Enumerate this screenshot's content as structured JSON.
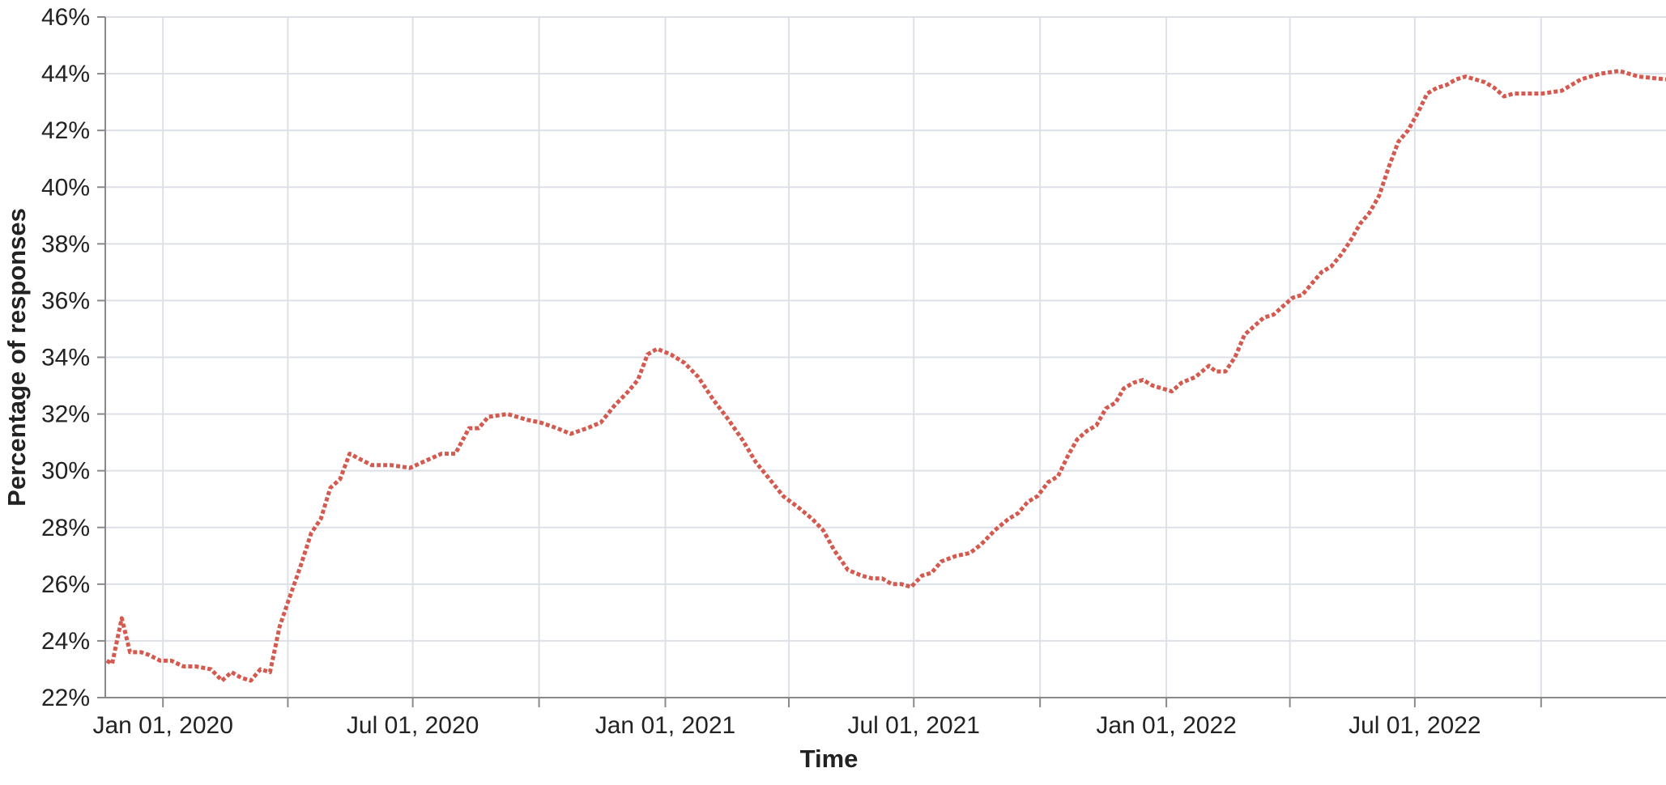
{
  "chart_data": {
    "type": "line",
    "xlabel": "Time",
    "ylabel": "Percentage of responses",
    "ylim": [
      22,
      46
    ],
    "xlim": [
      "2019-11-20",
      "2022-12-31"
    ],
    "y_tick_values": [
      22,
      24,
      26,
      28,
      30,
      32,
      34,
      36,
      38,
      40,
      42,
      44,
      46
    ],
    "y_tick_labels": [
      "22%",
      "24%",
      "26%",
      "28%",
      "30%",
      "32%",
      "34%",
      "36%",
      "38%",
      "40%",
      "42%",
      "44%",
      "46%"
    ],
    "x_gridlines": [
      "2020-01-01",
      "2020-04-01",
      "2020-07-01",
      "2020-10-01",
      "2021-01-01",
      "2021-04-01",
      "2021-07-01",
      "2021-10-01",
      "2022-01-01",
      "2022-04-01",
      "2022-07-01",
      "2022-10-01"
    ],
    "x_tick_labels": [
      {
        "date": "2020-01-01",
        "label": "Jan 01, 2020"
      },
      {
        "date": "2020-07-01",
        "label": "Jul 01, 2020"
      },
      {
        "date": "2021-01-01",
        "label": "Jan 01, 2021"
      },
      {
        "date": "2021-07-01",
        "label": "Jul 01, 2021"
      },
      {
        "date": "2022-01-01",
        "label": "Jan 01, 2022"
      },
      {
        "date": "2022-07-01",
        "label": "Jul 01, 2022"
      }
    ],
    "grid": true,
    "legend": "none",
    "series": [
      {
        "color": "#d45a50",
        "style": "dotted",
        "points": [
          [
            "2019-11-21",
            23.3
          ],
          [
            "2019-11-25",
            23.2
          ],
          [
            "2019-12-02",
            24.8
          ],
          [
            "2019-12-08",
            23.6
          ],
          [
            "2019-12-16",
            23.6
          ],
          [
            "2019-12-22",
            23.5
          ],
          [
            "2019-12-30",
            23.3
          ],
          [
            "2020-01-07",
            23.3
          ],
          [
            "2020-01-16",
            23.1
          ],
          [
            "2020-01-25",
            23.1
          ],
          [
            "2020-02-05",
            23.0
          ],
          [
            "2020-02-13",
            22.6
          ],
          [
            "2020-02-20",
            22.9
          ],
          [
            "2020-02-27",
            22.7
          ],
          [
            "2020-03-05",
            22.6
          ],
          [
            "2020-03-12",
            23.0
          ],
          [
            "2020-03-19",
            22.9
          ],
          [
            "2020-03-26",
            24.5
          ],
          [
            "2020-04-02",
            25.5
          ],
          [
            "2020-04-10",
            26.6
          ],
          [
            "2020-04-18",
            27.8
          ],
          [
            "2020-04-25",
            28.3
          ],
          [
            "2020-05-02",
            29.4
          ],
          [
            "2020-05-09",
            29.7
          ],
          [
            "2020-05-16",
            30.6
          ],
          [
            "2020-05-24",
            30.4
          ],
          [
            "2020-06-01",
            30.2
          ],
          [
            "2020-06-15",
            30.2
          ],
          [
            "2020-06-29",
            30.1
          ],
          [
            "2020-07-08",
            30.3
          ],
          [
            "2020-07-22",
            30.6
          ],
          [
            "2020-08-01",
            30.6
          ],
          [
            "2020-08-11",
            31.5
          ],
          [
            "2020-08-18",
            31.5
          ],
          [
            "2020-08-25",
            31.9
          ],
          [
            "2020-09-08",
            32.0
          ],
          [
            "2020-09-22",
            31.8
          ],
          [
            "2020-10-02",
            31.7
          ],
          [
            "2020-10-14",
            31.5
          ],
          [
            "2020-10-24",
            31.3
          ],
          [
            "2020-11-05",
            31.5
          ],
          [
            "2020-11-15",
            31.7
          ],
          [
            "2020-11-25",
            32.3
          ],
          [
            "2020-12-05",
            32.8
          ],
          [
            "2020-12-12",
            33.2
          ],
          [
            "2020-12-19",
            34.1
          ],
          [
            "2020-12-26",
            34.3
          ],
          [
            "2021-01-05",
            34.1
          ],
          [
            "2021-01-15",
            33.8
          ],
          [
            "2021-01-25",
            33.3
          ],
          [
            "2021-02-05",
            32.5
          ],
          [
            "2021-02-16",
            31.8
          ],
          [
            "2021-02-26",
            31.1
          ],
          [
            "2021-03-08",
            30.3
          ],
          [
            "2021-03-18",
            29.7
          ],
          [
            "2021-03-28",
            29.1
          ],
          [
            "2021-04-08",
            28.7
          ],
          [
            "2021-04-18",
            28.3
          ],
          [
            "2021-04-26",
            27.9
          ],
          [
            "2021-05-04",
            27.2
          ],
          [
            "2021-05-14",
            26.5
          ],
          [
            "2021-05-24",
            26.3
          ],
          [
            "2021-06-01",
            26.2
          ],
          [
            "2021-06-08",
            26.2
          ],
          [
            "2021-06-15",
            26.0
          ],
          [
            "2021-06-22",
            26.0
          ],
          [
            "2021-06-29",
            25.9
          ],
          [
            "2021-07-07",
            26.3
          ],
          [
            "2021-07-14",
            26.4
          ],
          [
            "2021-07-21",
            26.8
          ],
          [
            "2021-08-01",
            27.0
          ],
          [
            "2021-08-11",
            27.1
          ],
          [
            "2021-08-19",
            27.4
          ],
          [
            "2021-08-29",
            27.9
          ],
          [
            "2021-09-08",
            28.3
          ],
          [
            "2021-09-15",
            28.5
          ],
          [
            "2021-09-22",
            28.9
          ],
          [
            "2021-09-29",
            29.1
          ],
          [
            "2021-10-07",
            29.6
          ],
          [
            "2021-10-14",
            29.8
          ],
          [
            "2021-10-21",
            30.5
          ],
          [
            "2021-10-28",
            31.1
          ],
          [
            "2021-11-04",
            31.4
          ],
          [
            "2021-11-11",
            31.6
          ],
          [
            "2021-11-18",
            32.2
          ],
          [
            "2021-11-25",
            32.4
          ],
          [
            "2021-12-01",
            32.9
          ],
          [
            "2021-12-08",
            33.1
          ],
          [
            "2021-12-15",
            33.2
          ],
          [
            "2021-12-22",
            33.0
          ],
          [
            "2021-12-29",
            32.9
          ],
          [
            "2022-01-05",
            32.8
          ],
          [
            "2022-01-12",
            33.1
          ],
          [
            "2022-01-22",
            33.3
          ],
          [
            "2022-02-01",
            33.7
          ],
          [
            "2022-02-06",
            33.5
          ],
          [
            "2022-02-13",
            33.5
          ],
          [
            "2022-02-20",
            34.0
          ],
          [
            "2022-02-27",
            34.8
          ],
          [
            "2022-03-06",
            35.1
          ],
          [
            "2022-03-13",
            35.4
          ],
          [
            "2022-03-20",
            35.5
          ],
          [
            "2022-03-27",
            35.8
          ],
          [
            "2022-04-03",
            36.1
          ],
          [
            "2022-04-10",
            36.2
          ],
          [
            "2022-04-17",
            36.6
          ],
          [
            "2022-04-24",
            37.0
          ],
          [
            "2022-05-01",
            37.2
          ],
          [
            "2022-05-08",
            37.6
          ],
          [
            "2022-05-15",
            38.1
          ],
          [
            "2022-05-22",
            38.7
          ],
          [
            "2022-05-29",
            39.1
          ],
          [
            "2022-06-05",
            39.7
          ],
          [
            "2022-06-12",
            40.7
          ],
          [
            "2022-06-19",
            41.6
          ],
          [
            "2022-06-26",
            42.0
          ],
          [
            "2022-07-03",
            42.6
          ],
          [
            "2022-07-10",
            43.3
          ],
          [
            "2022-07-17",
            43.5
          ],
          [
            "2022-07-24",
            43.6
          ],
          [
            "2022-07-31",
            43.8
          ],
          [
            "2022-08-07",
            43.9
          ],
          [
            "2022-08-14",
            43.8
          ],
          [
            "2022-08-21",
            43.7
          ],
          [
            "2022-08-28",
            43.5
          ],
          [
            "2022-09-04",
            43.2
          ],
          [
            "2022-09-11",
            43.3
          ],
          [
            "2022-09-18",
            43.3
          ],
          [
            "2022-10-02",
            43.3
          ],
          [
            "2022-10-16",
            43.4
          ],
          [
            "2022-10-30",
            43.8
          ],
          [
            "2022-11-13",
            44.0
          ],
          [
            "2022-11-27",
            44.1
          ],
          [
            "2022-12-11",
            43.9
          ],
          [
            "2022-12-31",
            43.8
          ]
        ]
      }
    ]
  }
}
